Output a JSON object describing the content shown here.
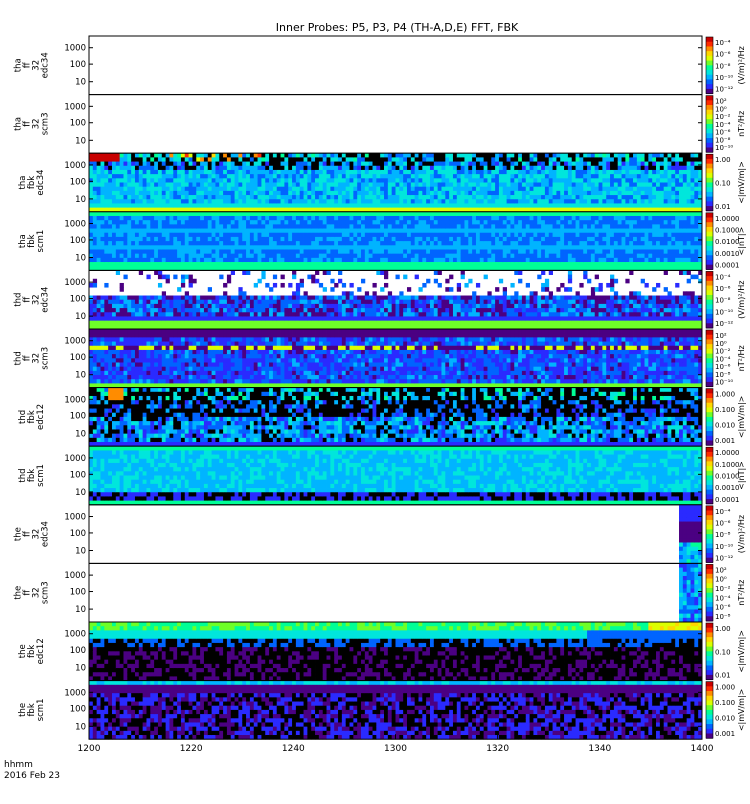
{
  "title": "Inner Probes: P5, P3, P4 (TH-A,D,E) FFT, FBK",
  "footer": {
    "line1": "hhmm",
    "line2": "2016 Feb 23"
  },
  "palette": [
    "#4b0082",
    "#2a2aff",
    "#0064ff",
    "#00b4ff",
    "#00e6dc",
    "#00ff96",
    "#6eff28",
    "#dcff00",
    "#ffd700",
    "#ff8c00",
    "#ff2a00",
    "#c80000"
  ],
  "chart_data": {
    "type": "heatmap",
    "title": "Inner Probes: P5, P3, P4 (TH-A,D,E) FFT, FBK",
    "x_ticks": [
      "1200",
      "1220",
      "1240",
      "1300",
      "1320",
      "1340",
      "1400"
    ],
    "y_ticks": [
      "1000",
      "100",
      "10"
    ],
    "panels": [
      {
        "label": [
          "tha",
          "ff",
          "32",
          "edc34"
        ],
        "y_ticks": [
          "1000",
          "100",
          "10"
        ],
        "cbar_unit": "(V/m)²/Hz",
        "cbar_ticks": [
          "10⁻⁴",
          "10⁻⁶",
          "10⁻⁸",
          "10⁻¹⁰",
          "10⁻¹²"
        ],
        "pattern": "empty"
      },
      {
        "label": [
          "tha",
          "ff",
          "32",
          "scm3"
        ],
        "y_ticks": [
          "1000",
          "100",
          "10"
        ],
        "cbar_unit": "nT²/Hz",
        "cbar_ticks": [
          "10²",
          "10⁰",
          "10⁻²",
          "10⁻⁴",
          "10⁻⁶",
          "10⁻⁸",
          "10⁻¹⁰"
        ],
        "pattern": "empty"
      },
      {
        "label": [
          "tha",
          "fbk",
          "edc34"
        ],
        "y_ticks": [
          "1000",
          "100",
          "10"
        ],
        "cbar_unit": "<|mV/m|>",
        "cbar_ticks": [
          "1.00",
          "0.10",
          "0.01"
        ],
        "pattern": "fbk_edc_a"
      },
      {
        "label": [
          "tha",
          "fbk",
          "scm1"
        ],
        "y_ticks": [
          "1000",
          "100",
          "10"
        ],
        "cbar_unit": "<|nT|>",
        "cbar_ticks": [
          "1.0000",
          "0.1000",
          "0.0100",
          "0.0010",
          "0.0001"
        ],
        "pattern": "fbk_scm_a"
      },
      {
        "label": [
          "thd",
          "ff",
          "32",
          "edc34"
        ],
        "y_ticks": [
          "1000",
          "100",
          "10"
        ],
        "cbar_unit": "(V/m)²/Hz",
        "cbar_ticks": [
          "10⁻⁴",
          "10⁻⁶",
          "10⁻⁸",
          "10⁻¹⁰",
          "10⁻¹²"
        ],
        "pattern": "ff_edc_d"
      },
      {
        "label": [
          "thd",
          "ff",
          "32",
          "scm3"
        ],
        "y_ticks": [
          "1000",
          "100",
          "10"
        ],
        "cbar_unit": "nT²/Hz",
        "cbar_ticks": [
          "10²",
          "10⁰",
          "10⁻²",
          "10⁻⁴",
          "10⁻⁶",
          "10⁻⁸",
          "10⁻¹⁰"
        ],
        "pattern": "ff_scm_d"
      },
      {
        "label": [
          "thd",
          "fbk",
          "edc12"
        ],
        "y_ticks": [
          "1000",
          "100",
          "10"
        ],
        "cbar_unit": "<|mV/m|>",
        "cbar_ticks": [
          "1.000",
          "0.100",
          "0.010",
          "0.001"
        ],
        "pattern": "fbk_edc_d"
      },
      {
        "label": [
          "thd",
          "fbk",
          "scm1"
        ],
        "y_ticks": [
          "1000",
          "100",
          "10"
        ],
        "cbar_unit": "<|nT|>",
        "cbar_ticks": [
          "1.0000",
          "0.1000",
          "0.0100",
          "0.0010",
          "0.0001"
        ],
        "pattern": "fbk_scm_d"
      },
      {
        "label": [
          "the",
          "ff",
          "32",
          "edc34"
        ],
        "y_ticks": [
          "1000",
          "100",
          "10"
        ],
        "cbar_unit": "(V/m)²/Hz",
        "cbar_ticks": [
          "10⁻⁴",
          "10⁻⁶",
          "10⁻⁸",
          "10⁻¹⁰",
          "10⁻¹²"
        ],
        "pattern": "ff_edc_e"
      },
      {
        "label": [
          "the",
          "ff",
          "32",
          "scm3"
        ],
        "y_ticks": [
          "1000",
          "100",
          "10"
        ],
        "cbar_unit": "nT²/Hz",
        "cbar_ticks": [
          "10²",
          "10⁰",
          "10⁻²",
          "10⁻⁴",
          "10⁻⁶",
          "10⁻⁸"
        ],
        "pattern": "ff_scm_e"
      },
      {
        "label": [
          "the",
          "fbk",
          "edc12"
        ],
        "y_ticks": [
          "1000",
          "100",
          "10"
        ],
        "cbar_unit": "<|mV/m|>",
        "cbar_ticks": [
          "1.00",
          "0.10",
          "0.01"
        ],
        "pattern": "fbk_edc_e"
      },
      {
        "label": [
          "the",
          "fbk",
          "scm1"
        ],
        "y_ticks": [
          "1000",
          "100",
          "10"
        ],
        "cbar_unit": "<|mV/m|>",
        "cbar_ticks": [
          "1.000",
          "0.100",
          "0.010",
          "0.001"
        ],
        "pattern": "fbk_scm_e"
      }
    ]
  }
}
